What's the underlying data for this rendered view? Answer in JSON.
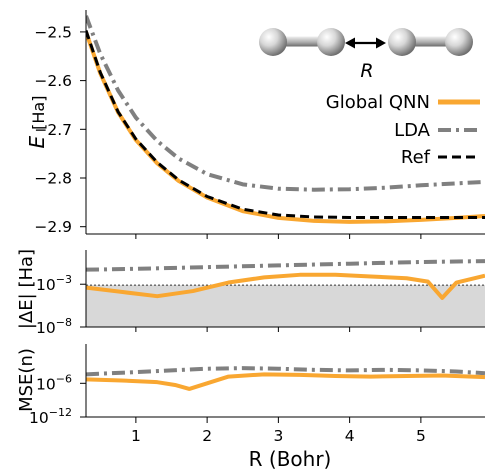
{
  "chart_data": [
    {
      "panel": "energy",
      "type": "line",
      "ylabel_symbol": "E",
      "ylabel_unit": "[Ha]",
      "xlim": [
        0.3,
        5.9
      ],
      "ylim": [
        -2.915,
        -2.455
      ],
      "yticks": [
        -2.5,
        -2.6,
        -2.7,
        -2.8,
        -2.9
      ],
      "ytick_labels": [
        "−2.5",
        "−2.6",
        "−2.7",
        "−2.8",
        "−2.9"
      ],
      "legend_position": "right",
      "series": [
        {
          "name": "Global QNN",
          "color": "#f9a731",
          "style": "solid",
          "x": [
            0.3,
            0.5,
            0.75,
            1.0,
            1.3,
            1.6,
            2.0,
            2.5,
            3.0,
            3.5,
            4.0,
            4.5,
            5.0,
            5.5,
            5.9
          ],
          "y": [
            -2.5,
            -2.585,
            -2.665,
            -2.722,
            -2.77,
            -2.806,
            -2.84,
            -2.868,
            -2.882,
            -2.888,
            -2.89,
            -2.889,
            -2.886,
            -2.882,
            -2.878
          ]
        },
        {
          "name": "LDA",
          "color": "#808080",
          "style": "dashdot",
          "x": [
            0.3,
            0.5,
            0.75,
            1.0,
            1.3,
            1.6,
            2.0,
            2.5,
            3.0,
            3.5,
            4.0,
            4.5,
            5.0,
            5.5,
            5.9
          ],
          "y": [
            -2.467,
            -2.545,
            -2.62,
            -2.676,
            -2.724,
            -2.76,
            -2.792,
            -2.813,
            -2.822,
            -2.824,
            -2.823,
            -2.82,
            -2.815,
            -2.811,
            -2.808
          ]
        },
        {
          "name": "Ref",
          "color": "#000000",
          "style": "dashed",
          "x": [
            0.3,
            0.5,
            0.75,
            1.0,
            1.3,
            1.6,
            2.0,
            2.5,
            3.0,
            3.5,
            4.0,
            4.5,
            5.0,
            5.5,
            5.9
          ],
          "y": [
            -2.497,
            -2.583,
            -2.664,
            -2.72,
            -2.768,
            -2.804,
            -2.838,
            -2.864,
            -2.876,
            -2.88,
            -2.881,
            -2.881,
            -2.881,
            -2.881,
            -2.881
          ]
        }
      ],
      "inset_label": "R"
    },
    {
      "panel": "energy_error",
      "type": "line",
      "ylabel": "|ΔE| [Ha]",
      "yscale": "log",
      "xlim": [
        0.3,
        5.9
      ],
      "ylim_exponent": [
        -8,
        1
      ],
      "yticks_exponent": [
        -3,
        -8
      ],
      "ytick_base": "10",
      "yticks_exp_labels": [
        "−3",
        "−8"
      ],
      "threshold_exponent": -3.1,
      "series": [
        {
          "name": "Global QNN",
          "color": "#f9a731",
          "style": "solid",
          "x": [
            0.3,
            0.8,
            1.3,
            1.8,
            2.3,
            2.8,
            3.3,
            3.8,
            4.3,
            4.8,
            5.1,
            5.3,
            5.5,
            5.9
          ],
          "y_exp": [
            -3.4,
            -3.9,
            -4.4,
            -3.8,
            -2.8,
            -2.2,
            -1.9,
            -1.9,
            -2.1,
            -2.3,
            -2.7,
            -4.6,
            -2.8,
            -2.0
          ]
        },
        {
          "name": "LDA",
          "color": "#808080",
          "style": "dashdot",
          "x": [
            0.3,
            1.0,
            2.0,
            3.0,
            4.0,
            5.0,
            5.9
          ],
          "y_exp": [
            -1.3,
            -1.2,
            -1.0,
            -0.8,
            -0.6,
            -0.4,
            -0.3
          ]
        }
      ]
    },
    {
      "panel": "density_error",
      "type": "line",
      "ylabel": "MSE(n)",
      "yscale": "log",
      "xlim": [
        0.3,
        5.9
      ],
      "ylim_exponent": [
        -12,
        1
      ],
      "yticks_exponent": [
        -6,
        -12
      ],
      "ytick_base": "10",
      "yticks_exp_labels": [
        "−6",
        "−12"
      ],
      "xlabel": "R (Bohr)",
      "xticks": [
        1,
        2,
        3,
        4,
        5
      ],
      "series": [
        {
          "name": "Global QNN",
          "color": "#f9a731",
          "style": "solid",
          "x": [
            0.3,
            0.8,
            1.3,
            1.55,
            1.75,
            2.0,
            2.3,
            2.8,
            3.3,
            3.8,
            4.3,
            4.8,
            5.3,
            5.9
          ],
          "y_exp": [
            -5.3,
            -5.5,
            -5.8,
            -6.3,
            -7.0,
            -6.0,
            -4.8,
            -4.4,
            -4.5,
            -4.7,
            -4.8,
            -4.7,
            -4.6,
            -4.9
          ]
        },
        {
          "name": "LDA",
          "color": "#808080",
          "style": "dashdot",
          "x": [
            0.3,
            1.0,
            1.5,
            2.0,
            2.5,
            3.0,
            3.5,
            4.0,
            4.5,
            5.0,
            5.5,
            5.9
          ],
          "y_exp": [
            -4.4,
            -4.0,
            -3.7,
            -3.4,
            -3.3,
            -3.4,
            -3.6,
            -3.7,
            -3.6,
            -3.7,
            -3.9,
            -4.2
          ]
        }
      ]
    }
  ]
}
